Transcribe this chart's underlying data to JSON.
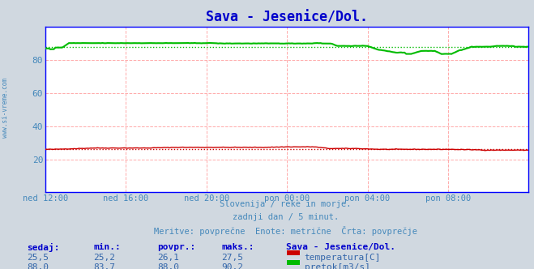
{
  "title": "Sava - Jesenice/Dol.",
  "title_color": "#0000cc",
  "bg_color": "#d0d8e0",
  "plot_bg_color": "#ffffff",
  "grid_color": "#ffaaaa",
  "border_color": "#0000ff",
  "xlabel_color": "#4488bb",
  "ylabel_color": "#4488bb",
  "watermark": "www.si-vreme.com",
  "subtitle_lines": [
    "Slovenija / reke in morje.",
    "zadnji dan / 5 minut.",
    "Meritve: povprečne  Enote: metrične  Črta: povprečje"
  ],
  "subtitle_color": "#4488bb",
  "tick_labels": [
    "ned 12:00",
    "ned 16:00",
    "ned 20:00",
    "pon 00:00",
    "pon 04:00",
    "pon 08:00"
  ],
  "tick_positions": [
    0,
    48,
    96,
    144,
    192,
    240
  ],
  "n_points": 289,
  "ylim": [
    0,
    100
  ],
  "yticks": [
    20,
    40,
    60,
    80
  ],
  "temp_color": "#cc0000",
  "flow_color": "#00bb00",
  "avg_color_temp": "#cc0000",
  "avg_color_flow": "#00bb00",
  "temp_avg": 26.1,
  "flow_avg": 88.0,
  "temp_min": 25.2,
  "temp_max": 27.5,
  "temp_current": 25.5,
  "flow_min": 83.7,
  "flow_max": 90.2,
  "flow_current": 88.0,
  "table_header_color": "#0000cc",
  "table_value_color": "#3366aa",
  "legend_title_color": "#0000cc"
}
